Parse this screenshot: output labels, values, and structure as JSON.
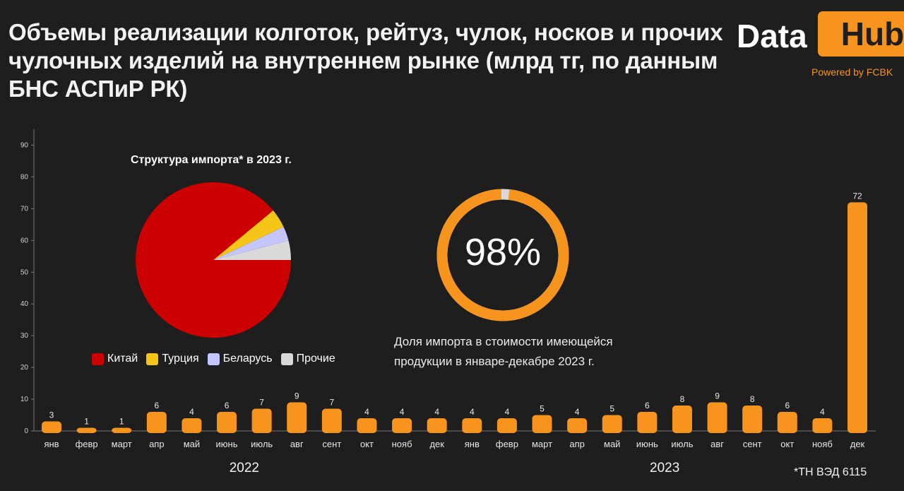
{
  "title": "Объемы реализации колготок, рейтуз, чулок, носков и прочих чулочных изделий на внутреннем рынке (млрд тг, по данным БНС АСПиР РК)",
  "logo": {
    "data": "Data",
    "hub": "Hub",
    "powered": "Powered by FCBK"
  },
  "colors": {
    "bar": "#f7941d",
    "background": "#1e1e1e"
  },
  "chart_data": [
    {
      "type": "bar",
      "categories": [
        "янв",
        "февр",
        "март",
        "апр",
        "май",
        "июнь",
        "июль",
        "авг",
        "сент",
        "окт",
        "нояб",
        "дек",
        "янв",
        "февр",
        "март",
        "апр",
        "май",
        "июнь",
        "июль",
        "авг",
        "сент",
        "окт",
        "нояб",
        "дек"
      ],
      "values": [
        3,
        1,
        1,
        6,
        4,
        6,
        7,
        9,
        7,
        4,
        4,
        4,
        4,
        4,
        5,
        4,
        5,
        6,
        8,
        9,
        8,
        6,
        4,
        72
      ],
      "year_groups": [
        {
          "label": "2022",
          "from": 0,
          "to": 11
        },
        {
          "label": "2023",
          "from": 12,
          "to": 23
        }
      ],
      "ylim": [
        0,
        95
      ],
      "yticks": [
        0,
        10,
        20,
        30,
        40,
        50,
        60,
        70,
        80,
        90
      ],
      "grid": false
    },
    {
      "type": "pie",
      "title": "Структура импорта* в 2023 г.",
      "labels": [
        "Китай",
        "Турция",
        "Беларусь",
        "Прочие"
      ],
      "values": [
        89,
        4,
        3,
        4
      ],
      "colors": [
        "#cc0000",
        "#f5c518",
        "#c5c5ff",
        "#d9d9d9"
      ],
      "legend": "bottom"
    },
    {
      "type": "pie",
      "value_label": "98%",
      "values": [
        98,
        2
      ],
      "colors": [
        "#f7941d",
        "#d9d9d9"
      ],
      "caption": "Доля импорта в стоимости имеющейся продукции в январе-декабре 2023 г."
    }
  ],
  "footnote": "*ТН ВЭД 6115"
}
